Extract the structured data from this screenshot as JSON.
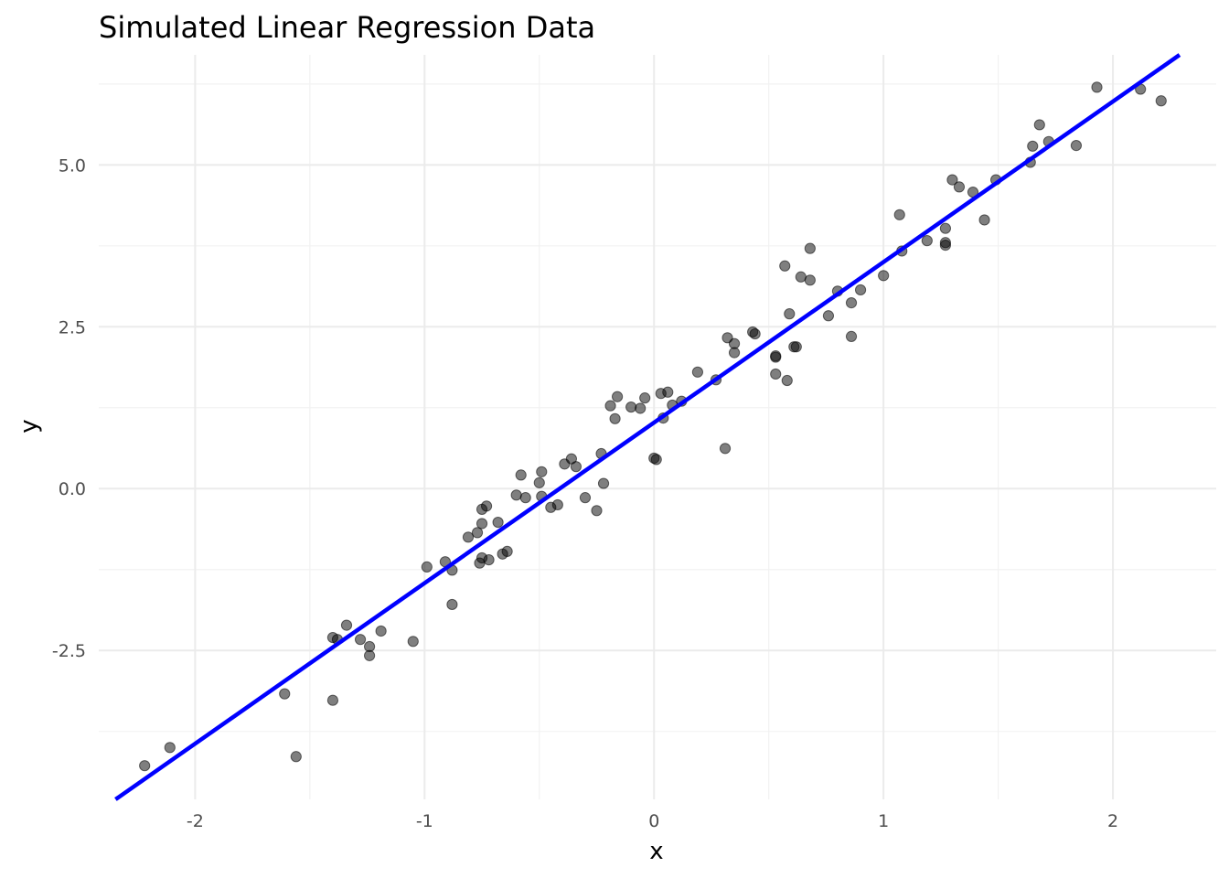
{
  "chart_data": {
    "type": "scatter",
    "title": "Simulated Linear Regression Data",
    "xlabel": "x",
    "ylabel": "y",
    "xlim": [
      -2.42,
      2.45
    ],
    "ylim": [
      -4.8,
      6.7
    ],
    "x_ticks": [
      -2,
      -1,
      0,
      1,
      2
    ],
    "x_tick_labels": [
      "-2",
      "-1",
      "0",
      "1",
      "2"
    ],
    "y_ticks": [
      -2.5,
      0.0,
      2.5,
      5.0
    ],
    "y_tick_labels": [
      "-2.5",
      "0.0",
      "2.5",
      "5.0"
    ],
    "grid": true,
    "legend": "none",
    "point_color": "#000000",
    "point_opacity": 0.5,
    "line_color": "#0000ff",
    "fit_line": {
      "intercept": 1.02,
      "slope": 2.48
    },
    "points": [
      {
        "x": -2.22,
        "y": -4.28
      },
      {
        "x": -2.11,
        "y": -4.0
      },
      {
        "x": -1.61,
        "y": -3.17
      },
      {
        "x": -1.56,
        "y": -4.14
      },
      {
        "x": -1.4,
        "y": -3.27
      },
      {
        "x": -1.4,
        "y": -2.3
      },
      {
        "x": -1.38,
        "y": -2.33
      },
      {
        "x": -1.34,
        "y": -2.11
      },
      {
        "x": -1.28,
        "y": -2.33
      },
      {
        "x": -1.24,
        "y": -2.44
      },
      {
        "x": -1.24,
        "y": -2.58
      },
      {
        "x": -1.19,
        "y": -2.2
      },
      {
        "x": -1.05,
        "y": -2.36
      },
      {
        "x": -0.99,
        "y": -1.21
      },
      {
        "x": -0.91,
        "y": -1.13
      },
      {
        "x": -0.88,
        "y": -1.26
      },
      {
        "x": -0.88,
        "y": -1.79
      },
      {
        "x": -0.81,
        "y": -0.75
      },
      {
        "x": -0.77,
        "y": -0.68
      },
      {
        "x": -0.76,
        "y": -1.15
      },
      {
        "x": -0.75,
        "y": -1.07
      },
      {
        "x": -0.75,
        "y": -0.32
      },
      {
        "x": -0.75,
        "y": -0.54
      },
      {
        "x": -0.73,
        "y": -0.27
      },
      {
        "x": -0.72,
        "y": -1.1
      },
      {
        "x": -0.68,
        "y": -0.52
      },
      {
        "x": -0.66,
        "y": -1.01
      },
      {
        "x": -0.64,
        "y": -0.97
      },
      {
        "x": -0.6,
        "y": -0.1
      },
      {
        "x": -0.58,
        "y": 0.21
      },
      {
        "x": -0.56,
        "y": -0.14
      },
      {
        "x": -0.5,
        "y": 0.09
      },
      {
        "x": -0.49,
        "y": 0.26
      },
      {
        "x": -0.49,
        "y": -0.12
      },
      {
        "x": -0.45,
        "y": -0.29
      },
      {
        "x": -0.42,
        "y": -0.25
      },
      {
        "x": -0.39,
        "y": 0.38
      },
      {
        "x": -0.36,
        "y": 0.46
      },
      {
        "x": -0.34,
        "y": 0.34
      },
      {
        "x": -0.3,
        "y": -0.14
      },
      {
        "x": -0.25,
        "y": -0.34
      },
      {
        "x": -0.23,
        "y": 0.54
      },
      {
        "x": -0.22,
        "y": 0.08
      },
      {
        "x": -0.19,
        "y": 1.28
      },
      {
        "x": -0.17,
        "y": 1.08
      },
      {
        "x": -0.16,
        "y": 1.42
      },
      {
        "x": -0.1,
        "y": 1.26
      },
      {
        "x": -0.06,
        "y": 1.24
      },
      {
        "x": -0.04,
        "y": 1.4
      },
      {
        "x": 0.0,
        "y": 0.47
      },
      {
        "x": 0.01,
        "y": 0.45
      },
      {
        "x": 0.03,
        "y": 1.47
      },
      {
        "x": 0.04,
        "y": 1.09
      },
      {
        "x": 0.06,
        "y": 1.49
      },
      {
        "x": 0.08,
        "y": 1.29
      },
      {
        "x": 0.12,
        "y": 1.35
      },
      {
        "x": 0.19,
        "y": 1.8
      },
      {
        "x": 0.27,
        "y": 1.68
      },
      {
        "x": 0.31,
        "y": 0.62
      },
      {
        "x": 0.32,
        "y": 2.33
      },
      {
        "x": 0.35,
        "y": 2.24
      },
      {
        "x": 0.35,
        "y": 2.1
      },
      {
        "x": 0.43,
        "y": 2.42
      },
      {
        "x": 0.44,
        "y": 2.39
      },
      {
        "x": 0.53,
        "y": 2.05
      },
      {
        "x": 0.53,
        "y": 2.03
      },
      {
        "x": 0.53,
        "y": 1.77
      },
      {
        "x": 0.57,
        "y": 3.44
      },
      {
        "x": 0.58,
        "y": 1.67
      },
      {
        "x": 0.59,
        "y": 2.7
      },
      {
        "x": 0.61,
        "y": 2.19
      },
      {
        "x": 0.62,
        "y": 2.19
      },
      {
        "x": 0.64,
        "y": 3.27
      },
      {
        "x": 0.68,
        "y": 3.71
      },
      {
        "x": 0.68,
        "y": 3.22
      },
      {
        "x": 0.76,
        "y": 2.67
      },
      {
        "x": 0.8,
        "y": 3.05
      },
      {
        "x": 0.86,
        "y": 2.87
      },
      {
        "x": 0.86,
        "y": 2.35
      },
      {
        "x": 0.9,
        "y": 3.07
      },
      {
        "x": 1.0,
        "y": 3.29
      },
      {
        "x": 1.07,
        "y": 4.23
      },
      {
        "x": 1.08,
        "y": 3.67
      },
      {
        "x": 1.19,
        "y": 3.83
      },
      {
        "x": 1.27,
        "y": 4.02
      },
      {
        "x": 1.27,
        "y": 3.8
      },
      {
        "x": 1.27,
        "y": 3.76
      },
      {
        "x": 1.3,
        "y": 4.77
      },
      {
        "x": 1.33,
        "y": 4.66
      },
      {
        "x": 1.39,
        "y": 4.58
      },
      {
        "x": 1.44,
        "y": 4.15
      },
      {
        "x": 1.49,
        "y": 4.77
      },
      {
        "x": 1.64,
        "y": 5.04
      },
      {
        "x": 1.65,
        "y": 5.29
      },
      {
        "x": 1.68,
        "y": 5.62
      },
      {
        "x": 1.72,
        "y": 5.36
      },
      {
        "x": 1.84,
        "y": 5.3
      },
      {
        "x": 1.93,
        "y": 6.2
      },
      {
        "x": 2.12,
        "y": 6.17
      },
      {
        "x": 2.21,
        "y": 5.99
      }
    ]
  }
}
